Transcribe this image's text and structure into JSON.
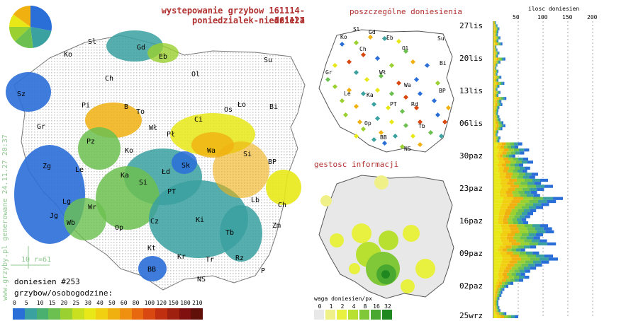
{
  "header": {
    "title_line1": "wystepowanie grzybow 161114-161127",
    "title_line2": "poniedzialek-niedziela",
    "points_title": "poszczególne doniesienia",
    "density_title": "gestosc informacji"
  },
  "side_label": "www.grzyby.pl generowane 24.11.27 20:37",
  "scale_marker": "10 r=61",
  "reports_count": "doniesien #253",
  "legend": {
    "title": "grzybow/osobogodzine:",
    "values": [
      "0",
      "5",
      "10",
      "15",
      "20",
      "25",
      "30",
      "40",
      "50",
      "60",
      "80",
      "100",
      "120",
      "150",
      "180",
      "210"
    ],
    "colors": [
      "#2a6ed8",
      "#3aa0a0",
      "#4ab070",
      "#6cc050",
      "#9ad030",
      "#c8e020",
      "#e8e818",
      "#f0d010",
      "#f0b010",
      "#f09010",
      "#e86810",
      "#d84810",
      "#c03010",
      "#a02010",
      "#801010",
      "#601008"
    ]
  },
  "density_legend": {
    "title": "waga doniesien/px",
    "values": [
      "0",
      "1",
      "2",
      "4",
      "8",
      "16",
      "32"
    ],
    "colors": [
      "#e8e8e8",
      "#f0f088",
      "#e8f040",
      "#b8e030",
      "#80c838",
      "#48a830",
      "#208820"
    ]
  },
  "city_labels": [
    "Gd",
    "Sl",
    "Eb",
    "Ko",
    "Ol",
    "Su",
    "Ch",
    "Sz",
    "Bi",
    "Pi",
    "B",
    "To",
    "Ci",
    "Os",
    "Ło",
    "Gr",
    "Wł",
    "Pł",
    "Pz",
    "Ko",
    "Wa",
    "Si",
    "Zg",
    "Le",
    "Ka",
    "Łd",
    "Sk",
    "BP",
    "Lg",
    "Si",
    "Wr",
    "PT",
    "Jg",
    "Wb",
    "Lb",
    "Ch",
    "Op",
    "Cz",
    "Ki",
    "Zm",
    "Kt",
    "Tb",
    "Kr",
    "Tr",
    "Rz",
    "BB",
    "NS",
    "P"
  ],
  "histogram": {
    "title": "ilosc doniesien",
    "axis_ticks": [
      "50",
      "100",
      "150",
      "200"
    ],
    "date_labels": [
      "27lis",
      "20lis",
      "13lis",
      "06lis",
      "30paz",
      "23paz",
      "16paz",
      "09paz",
      "02paz",
      "25wrz"
    ],
    "bars": [
      5,
      8,
      12,
      10,
      9,
      14,
      10,
      18,
      6,
      8,
      12,
      9,
      24,
      14,
      8,
      6,
      10,
      8,
      16,
      10,
      22,
      12,
      8,
      14,
      10,
      26,
      16,
      18,
      12,
      10,
      9,
      12,
      14,
      20,
      24,
      18,
      10,
      8,
      14,
      12,
      58,
      50,
      72,
      62,
      44,
      70,
      80,
      60,
      74,
      68,
      90,
      84,
      110,
      96,
      120,
      102,
      88,
      94,
      140,
      126,
      112,
      100,
      86,
      80,
      74,
      66,
      70,
      110,
      118,
      122,
      100,
      94,
      108,
      126,
      86,
      64,
      92,
      120,
      130,
      112,
      98,
      86,
      74,
      64,
      72,
      60,
      40,
      30,
      22,
      18,
      16,
      12,
      10,
      10,
      12,
      14,
      26,
      50
    ]
  },
  "pie": {
    "slices": [
      0.28,
      0.2,
      0.15,
      0.12,
      0.1,
      0.15
    ],
    "colors": [
      "#2a6ed8",
      "#3aa0a0",
      "#6cc050",
      "#9ad030",
      "#e8e818",
      "#f0b010"
    ]
  }
}
